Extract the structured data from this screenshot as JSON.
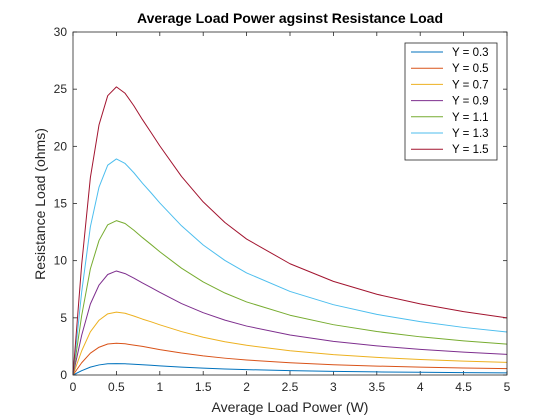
{
  "chart_data": {
    "type": "line",
    "title": "Average Load Power agsinst Resistance Load",
    "xlabel": "Average Load Power (W)",
    "ylabel": "Resistance Load (ohms)",
    "xlim": [
      0,
      5
    ],
    "ylim": [
      0,
      30
    ],
    "xticks": [
      0,
      0.5,
      1,
      1.5,
      2,
      2.5,
      3,
      3.5,
      4,
      4.5,
      5
    ],
    "xtick_labels": [
      "0",
      "0.5",
      "1",
      "1.5",
      "2",
      "2.5",
      "3",
      "3.5",
      "4",
      "4.5",
      "5"
    ],
    "yticks": [
      0,
      5,
      10,
      15,
      20,
      25,
      30
    ],
    "ytick_labels": [
      "0",
      "5",
      "10",
      "15",
      "20",
      "25",
      "30"
    ],
    "grid": false,
    "legend_position": "top-right",
    "x": [
      0,
      0.1,
      0.2,
      0.3,
      0.4,
      0.5,
      0.6,
      0.7,
      0.8,
      0.9,
      1.0,
      1.25,
      1.5,
      1.75,
      2.0,
      2.5,
      3.0,
      3.5,
      4.0,
      4.5,
      5.0
    ],
    "series": [
      {
        "name": "Y = 0.3",
        "color": "#0072BD",
        "values": [
          0,
          0.38,
          0.69,
          0.88,
          0.98,
          1.0,
          0.98,
          0.94,
          0.9,
          0.85,
          0.8,
          0.69,
          0.6,
          0.53,
          0.47,
          0.38,
          0.32,
          0.27,
          0.24,
          0.21,
          0.19
        ]
      },
      {
        "name": "Y = 0.5",
        "color": "#D95319",
        "values": [
          0,
          1.07,
          1.91,
          2.43,
          2.71,
          2.78,
          2.73,
          2.61,
          2.5,
          2.36,
          2.22,
          1.92,
          1.67,
          1.47,
          1.31,
          1.07,
          0.9,
          0.78,
          0.69,
          0.61,
          0.56
        ]
      },
      {
        "name": "Y = 0.7",
        "color": "#EDB120",
        "values": [
          0,
          2.11,
          3.78,
          4.79,
          5.35,
          5.5,
          5.4,
          5.16,
          4.89,
          4.65,
          4.39,
          3.8,
          3.3,
          2.91,
          2.6,
          2.12,
          1.78,
          1.54,
          1.36,
          1.21,
          1.1
        ]
      },
      {
        "name": "Y = 0.9",
        "color": "#7E2F8E",
        "values": [
          0,
          3.48,
          6.21,
          7.87,
          8.79,
          9.1,
          8.87,
          8.48,
          8.05,
          7.65,
          7.23,
          6.25,
          5.45,
          4.8,
          4.28,
          3.5,
          2.94,
          2.55,
          2.24,
          2.0,
          1.8
        ]
      },
      {
        "name": "Y = 1.1",
        "color": "#77AC30",
        "values": [
          0,
          5.2,
          9.28,
          11.77,
          13.14,
          13.5,
          13.25,
          12.67,
          12.02,
          11.41,
          10.78,
          9.34,
          8.14,
          7.17,
          6.39,
          5.23,
          4.4,
          3.8,
          3.34,
          2.98,
          2.7
        ]
      },
      {
        "name": "Y = 1.3",
        "color": "#4DBEEE",
        "values": [
          0,
          7.26,
          12.96,
          16.44,
          18.35,
          18.9,
          18.5,
          17.7,
          16.78,
          15.93,
          15.05,
          13.05,
          11.37,
          10.02,
          8.93,
          7.31,
          6.15,
          5.3,
          4.67,
          4.16,
          3.76
        ]
      },
      {
        "name": "Y = 1.5",
        "color": "#A2142F",
        "values": [
          0,
          9.67,
          17.26,
          21.89,
          24.43,
          25.2,
          24.64,
          23.56,
          22.34,
          21.2,
          20.04,
          17.37,
          15.14,
          13.34,
          11.89,
          9.73,
          8.19,
          7.06,
          6.22,
          5.54,
          5.0
        ]
      }
    ]
  }
}
